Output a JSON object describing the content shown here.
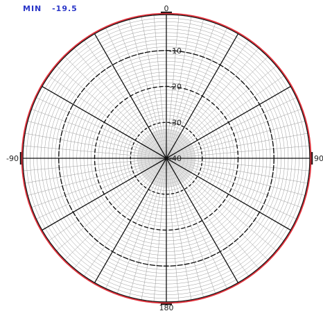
{
  "header": {
    "min_label": "MIN",
    "min_value": "-19.5"
  },
  "chart_data": {
    "type": "polar",
    "title": "",
    "angle_labels": {
      "top": "0",
      "left": "-90",
      "right": "90",
      "bottom": "180"
    },
    "radial_ticks": [
      {
        "value": 0,
        "label": "0"
      },
      {
        "value": -10,
        "label": "-10"
      },
      {
        "value": -20,
        "label": "-20"
      },
      {
        "value": -30,
        "label": "-30"
      },
      {
        "value": -40,
        "label": "-40"
      }
    ],
    "radial_range": [
      -40,
      0
    ],
    "spokes_every_deg": 30,
    "fine_grid": true,
    "series": [
      {
        "pattern": "omnidirectional",
        "level_db": 0,
        "color": "#e0303a"
      }
    ],
    "colors": {
      "pattern": "#e0303a",
      "grid_major": "#111111",
      "grid_minor": "#9a9a9a",
      "center_fill": "#cfcfcf",
      "header": "#2a36c8"
    }
  }
}
